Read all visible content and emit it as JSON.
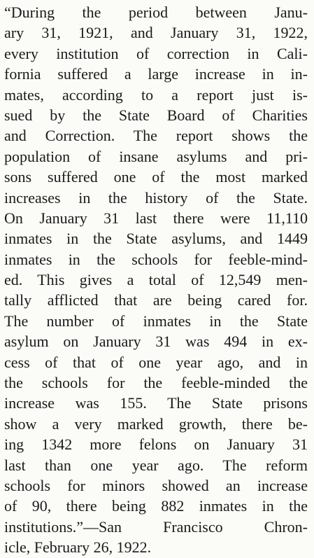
{
  "lines": [
    "“During the period between Janu-",
    "ary 31, 1921, and January 31, 1922,",
    "every institution of correction in Cali-",
    "fornia suffered a large increase in in-",
    "mates, according to a report just is-",
    "sued by the State Board of Charities",
    "and Correction. The report shows the",
    "population of insane asylums and pri-",
    "sons suffered one of the most marked",
    "increases in the history of the State.",
    "On January 31 last there were 11,110",
    "inmates in the State asylums, and 1449",
    "inmates in the schools for feeble-mind-",
    "ed. This gives a total of 12,549 men-",
    "tally afflicted that are being cared for.",
    "The number of inmates in the State",
    "asylum on January 31 was 494 in ex-",
    "cess of that of one year ago, and in",
    "the schools for the feeble-minded the",
    "increase was 155. The State prisons",
    "show a very marked growth, there be-",
    "ing 1342 more felons on January 31",
    "last than one year ago. The reform",
    "schools for minors showed an increase",
    "of 90, there being 882 inmates in the",
    "institutions.”—San Francisco Chron-",
    "icle, February 26, 1922."
  ]
}
